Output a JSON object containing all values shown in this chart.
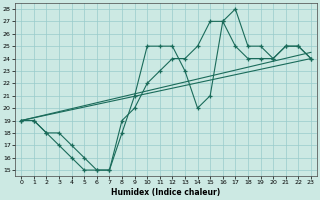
{
  "xlabel": "Humidex (Indice chaleur)",
  "xlim": [
    -0.5,
    23.5
  ],
  "ylim": [
    14.5,
    28.5
  ],
  "yticks": [
    15,
    16,
    17,
    18,
    19,
    20,
    21,
    22,
    23,
    24,
    25,
    26,
    27,
    28
  ],
  "xticks": [
    0,
    1,
    2,
    3,
    4,
    5,
    6,
    7,
    8,
    9,
    10,
    11,
    12,
    13,
    14,
    15,
    16,
    17,
    18,
    19,
    20,
    21,
    22,
    23
  ],
  "bg_color": "#cce9e3",
  "grid_color": "#99cccc",
  "line_color": "#1a6b5a",
  "line1_x": [
    0,
    1,
    2,
    3,
    4,
    5,
    6,
    7,
    8,
    9,
    10,
    11,
    12,
    13,
    14,
    15,
    16,
    17,
    18,
    19,
    20,
    21,
    22,
    23
  ],
  "line1_y": [
    19,
    19,
    18,
    18,
    17,
    16,
    15,
    15,
    18,
    21,
    25,
    25,
    25,
    23,
    20,
    21,
    27,
    28,
    25,
    25,
    24,
    25,
    25,
    24
  ],
  "line2_x": [
    0,
    1,
    2,
    3,
    4,
    5,
    6,
    7,
    8,
    9,
    10,
    11,
    12,
    13,
    14,
    15,
    16,
    17,
    18,
    19,
    20,
    21,
    22,
    23
  ],
  "line2_y": [
    19,
    19,
    18,
    17,
    16,
    15,
    15,
    15,
    19,
    20,
    22,
    23,
    24,
    24,
    25,
    27,
    27,
    25,
    24,
    24,
    24,
    25,
    25,
    24
  ],
  "line3_x": [
    0,
    23
  ],
  "line3_y": [
    19,
    24
  ],
  "line4_x": [
    0,
    23
  ],
  "line4_y": [
    19,
    24.5
  ]
}
